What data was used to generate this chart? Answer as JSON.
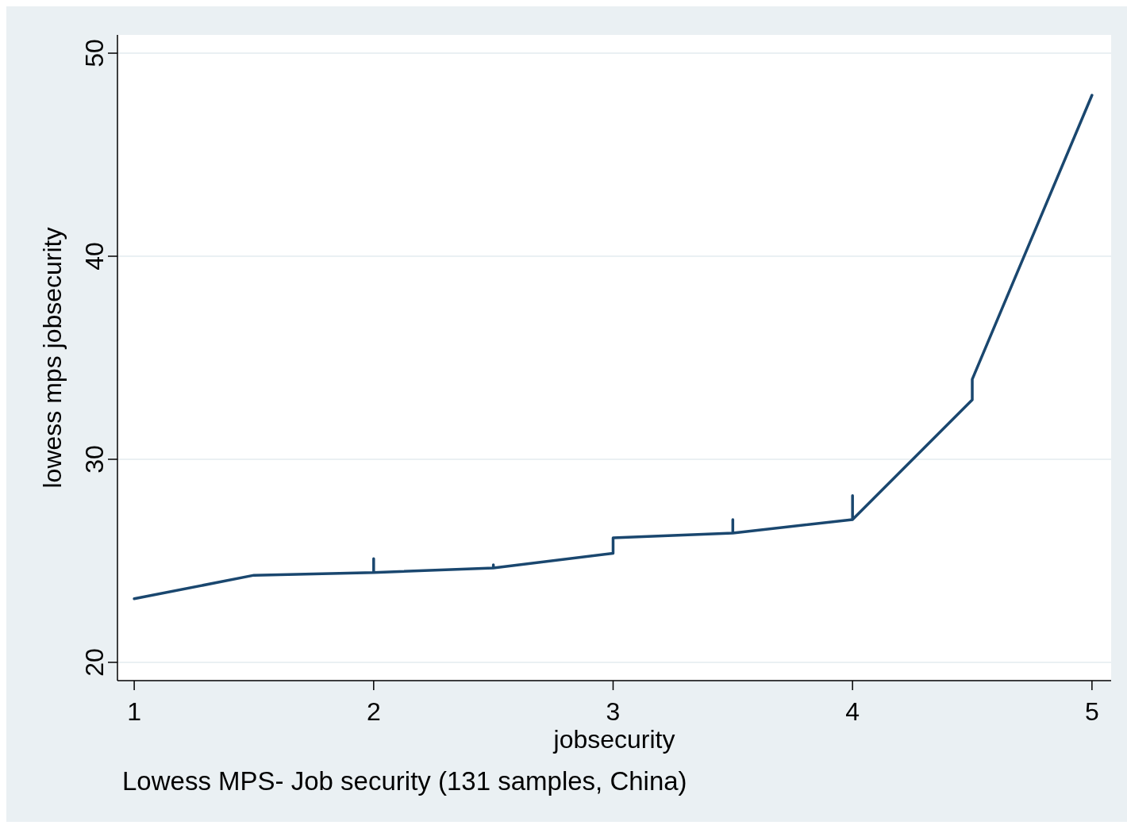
{
  "chart_data": {
    "type": "line",
    "xlabel": "jobsecurity",
    "ylabel": "lowess mps jobsecurity",
    "annotations": [
      "Lowess MPS- Job security (131 samples, China)"
    ],
    "series": [
      {
        "color": "#1a476f",
        "x": [
          1,
          1.5,
          2,
          2,
          2,
          2.5,
          2.5,
          2.5,
          3,
          3,
          3.5,
          3.5,
          3.5,
          4,
          4,
          4,
          4.5,
          4.5,
          5
        ],
        "values": [
          23.13,
          24.29,
          24.42,
          25.11,
          24.42,
          24.65,
          24.8,
          24.65,
          25.37,
          26.13,
          26.37,
          27.03,
          26.37,
          27.03,
          28.21,
          27.03,
          32.93,
          33.94,
          47.93
        ]
      }
    ],
    "xlim": [
      0.93,
      5.08
    ],
    "xticks": [
      1,
      2,
      3,
      4,
      5
    ],
    "ylim": [
      19.1,
      50.9
    ],
    "yticks": [
      20,
      30,
      40,
      50
    ],
    "grid": "y",
    "legend": false,
    "marker": "none",
    "line_style": "solid"
  }
}
